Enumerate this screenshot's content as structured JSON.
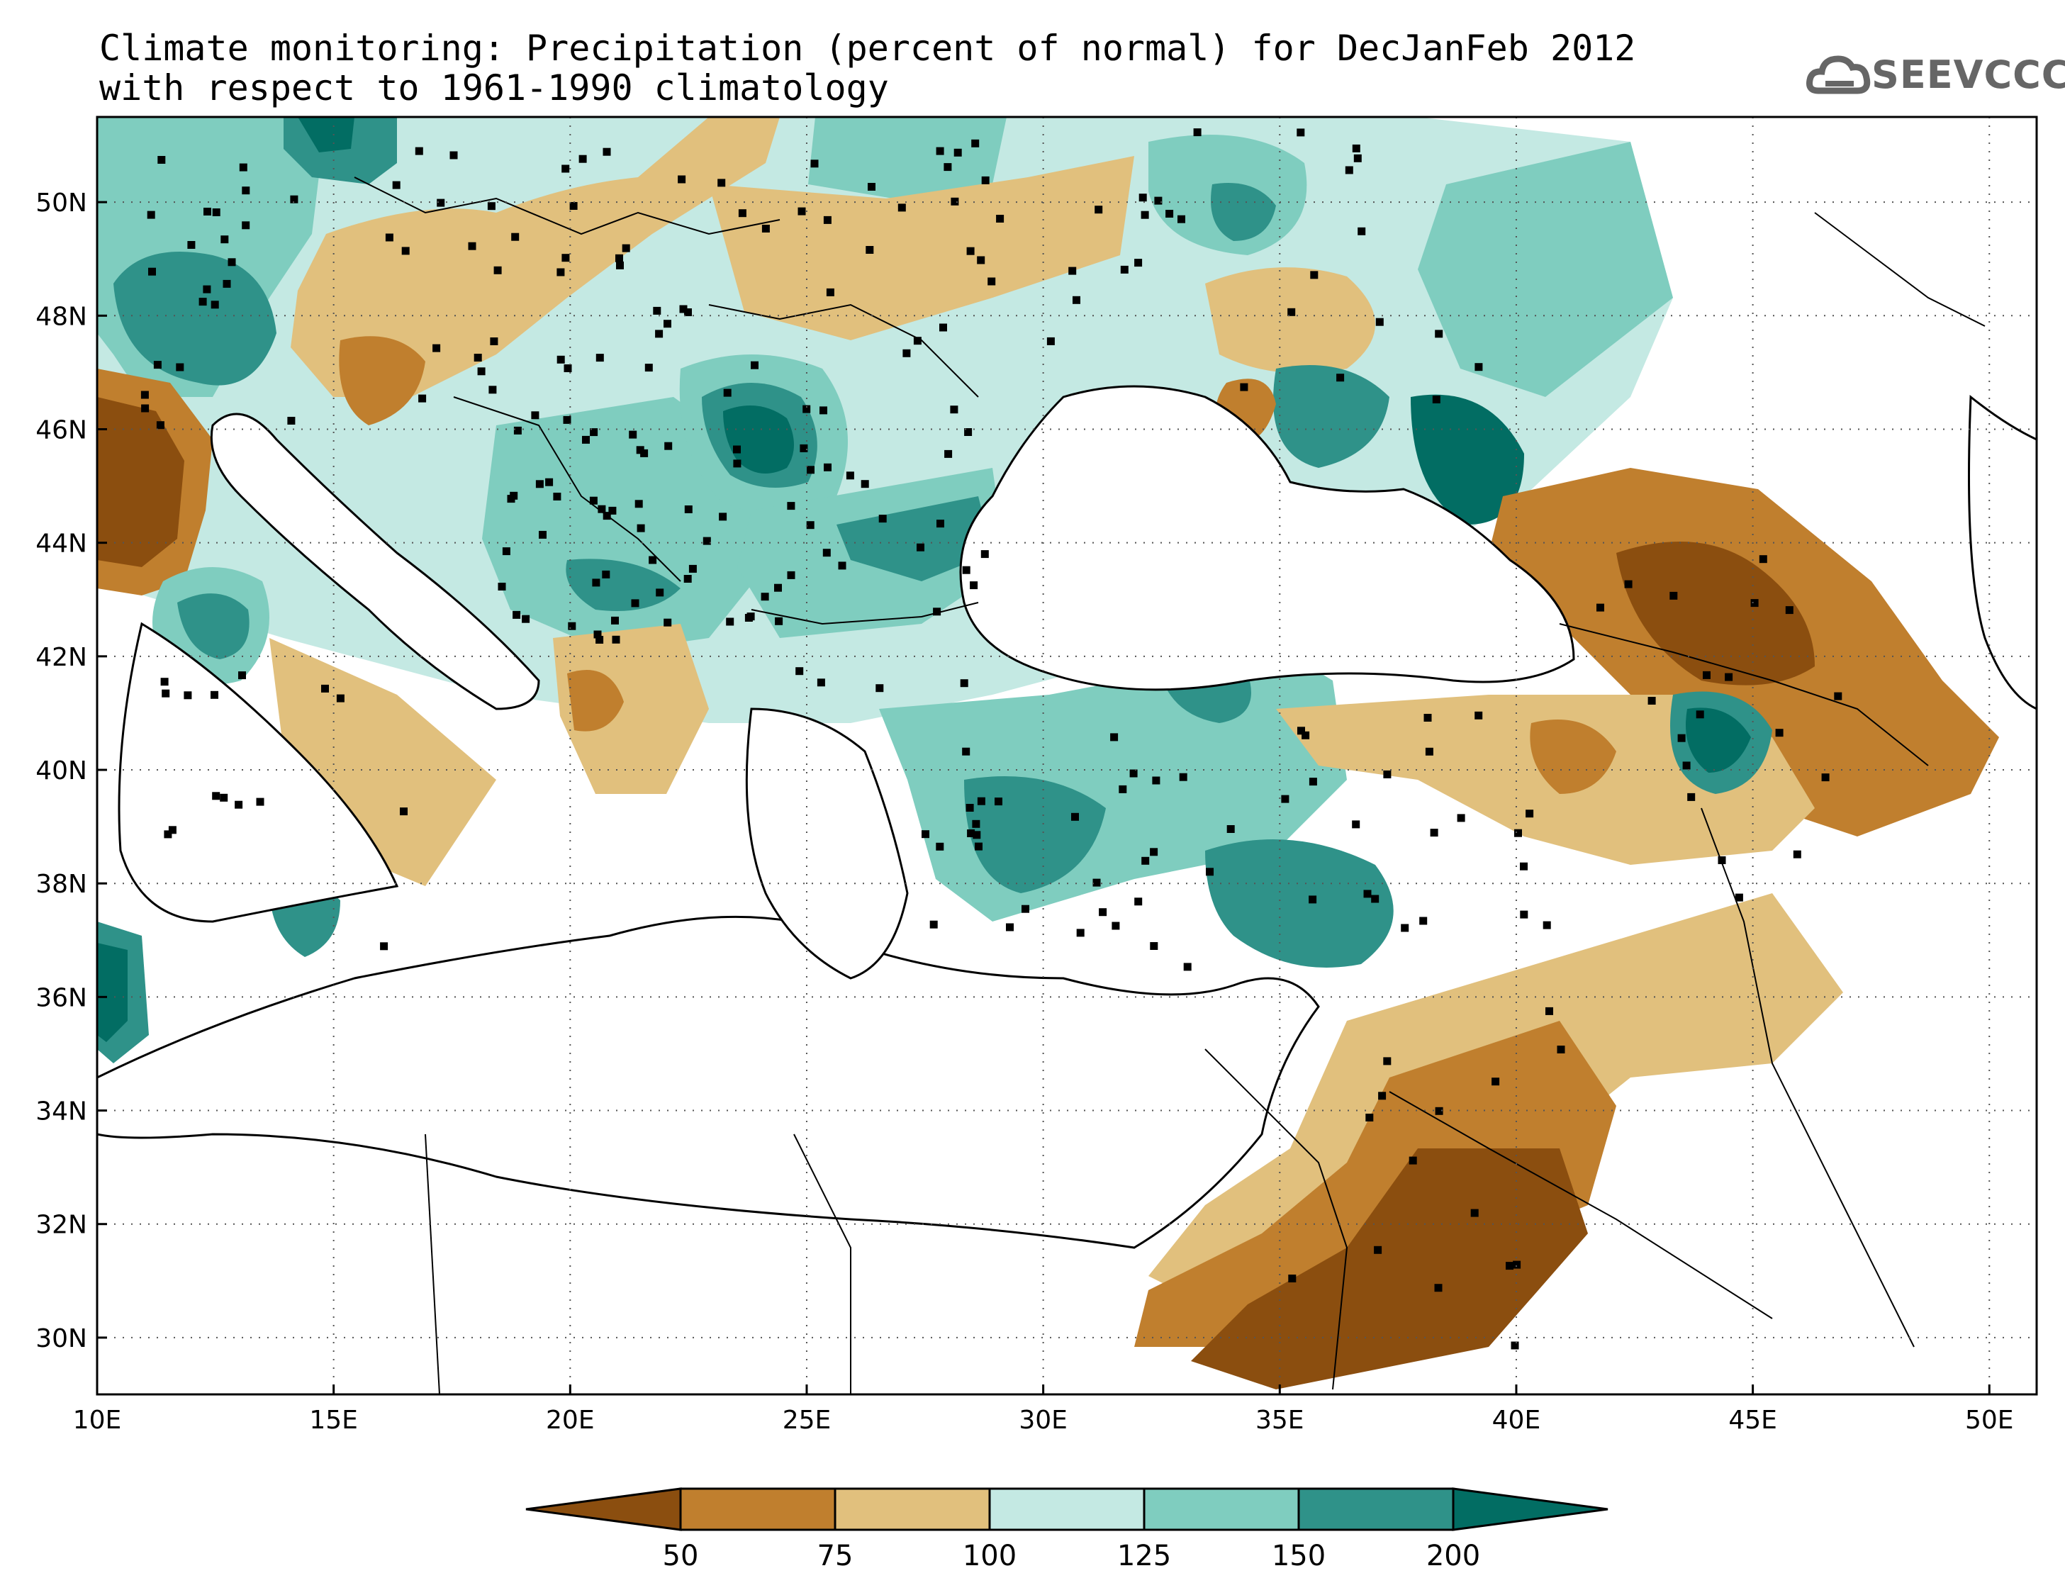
{
  "title": {
    "line1": "Climate monitoring: Precipitation (percent of normal) for DecJanFeb 2012",
    "line2": "with respect to 1961-1990 climatology"
  },
  "logo": {
    "text": "SEEVCCC",
    "icon": "cloud-icon"
  },
  "axes": {
    "lon_ticks": [
      "10E",
      "15E",
      "20E",
      "25E",
      "30E",
      "35E",
      "40E",
      "45E",
      "50E"
    ],
    "lat_ticks": [
      "30N",
      "32N",
      "34N",
      "36N",
      "38N",
      "40N",
      "42N",
      "44N",
      "46N",
      "48N",
      "50N"
    ],
    "lon_range": [
      10,
      51
    ],
    "lat_range": [
      29,
      51.5
    ],
    "grid": "dotted"
  },
  "colorbar": {
    "labels": [
      "50",
      "75",
      "100",
      "125",
      "150",
      "200"
    ],
    "colors": [
      "#8b4e0f",
      "#c07f2e",
      "#e1c07d",
      "#c4e9e3",
      "#7fcdbf",
      "#2f9289",
      "#026d63"
    ],
    "extend": "both"
  },
  "colors": {
    "very_dry": "#8b4e0f",
    "dry": "#c07f2e",
    "slightly_dry": "#e1c07d",
    "slightly_wet": "#c4e9e3",
    "wet": "#7fcdbf",
    "very_wet": "#2f9289",
    "extreme_wet": "#026d63"
  }
}
